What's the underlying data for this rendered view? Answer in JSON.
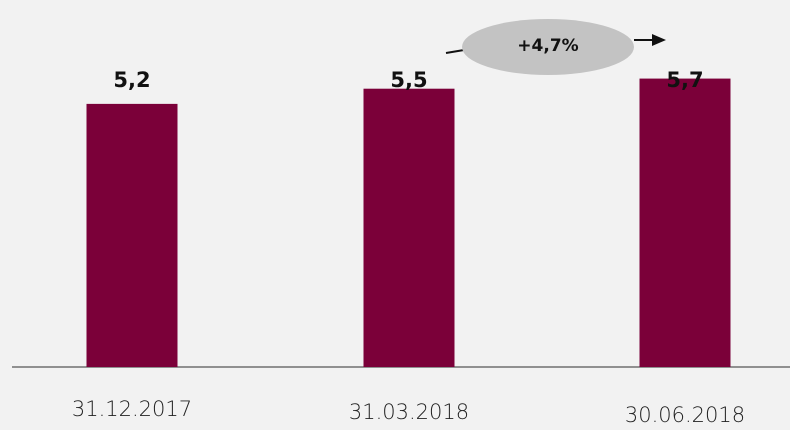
{
  "chart_data": {
    "type": "bar",
    "categories": [
      "31.12.2017",
      "31.03.2018",
      "30.06.2018"
    ],
    "values": [
      5.2,
      5.5,
      5.7
    ],
    "value_labels": [
      "5,2",
      "5,5",
      "5,7"
    ],
    "color": "#7b0039",
    "annotation": "+4,7%"
  }
}
